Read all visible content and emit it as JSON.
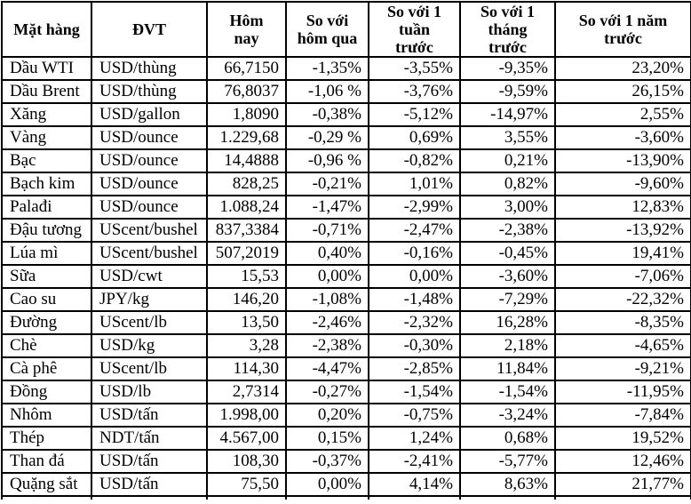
{
  "table": {
    "columns": [
      {
        "key": "name",
        "label": "Mặt hàng"
      },
      {
        "key": "unit",
        "label": "ĐVT"
      },
      {
        "key": "today",
        "label": "Hôm\nnay"
      },
      {
        "key": "vs_yesterday",
        "label": "So với\nhôm qua"
      },
      {
        "key": "vs_week",
        "label": "So với 1\ntuần\ntrước"
      },
      {
        "key": "vs_month",
        "label": "So với 1\ntháng\ntrước"
      },
      {
        "key": "vs_year",
        "label": "So với 1 năm\ntrước"
      }
    ],
    "rows": [
      {
        "name": "Dầu WTI",
        "unit": "USD/thùng",
        "today": "66,7150",
        "vs_yesterday": "-1,35%",
        "vs_week": "-3,55%",
        "vs_month": "-9,35%",
        "vs_year": "23,20%"
      },
      {
        "name": "Dầu Brent",
        "unit": "USD/thùng",
        "today": "76,8037",
        "vs_yesterday": "-1,06 %",
        "vs_week": "-3,76%",
        "vs_month": "-9,59%",
        "vs_year": "26,15%"
      },
      {
        "name": "Xăng",
        "unit": "USD/gallon",
        "today": "1,8090",
        "vs_yesterday": "-0,38%",
        "vs_week": "-5,12%",
        "vs_month": "-14,97%",
        "vs_year": "2,55%"
      },
      {
        "name": "Vàng",
        "unit": "USD/ounce",
        "today": "1.229,68",
        "vs_yesterday": "-0,29 %",
        "vs_week": "0,69%",
        "vs_month": "3,55%",
        "vs_year": "-3,60%"
      },
      {
        "name": "Bạc",
        "unit": "USD/ounce",
        "today": "14,4888",
        "vs_yesterday": "-0,96 %",
        "vs_week": "-0,82%",
        "vs_month": "0,21%",
        "vs_year": "-13,90%"
      },
      {
        "name": "Bạch kim",
        "unit": "USD/ounce",
        "today": "828,25",
        "vs_yesterday": "-0,21%",
        "vs_week": "1,01%",
        "vs_month": "0,82%",
        "vs_year": "-9,60%"
      },
      {
        "name": "Palađi",
        "unit": "USD/ounce",
        "today": "1.088,24",
        "vs_yesterday": "-1,47%",
        "vs_week": "-2,99%",
        "vs_month": "3,00%",
        "vs_year": "12,83%"
      },
      {
        "name": "Đậu tương",
        "unit": "UScent/bushel",
        "today": "837,3384",
        "vs_yesterday": "-0,71%",
        "vs_week": "-2,47%",
        "vs_month": "-2,38%",
        "vs_year": "-13,92%"
      },
      {
        "name": "Lúa mì",
        "unit": "UScent/bushel",
        "today": "507,2019",
        "vs_yesterday": "0,40%",
        "vs_week": "-0,16%",
        "vs_month": "-0,45%",
        "vs_year": "19,41%"
      },
      {
        "name": "Sữa",
        "unit": "USD/cwt",
        "today": "15,53",
        "vs_yesterday": "0,00%",
        "vs_week": "0,00%",
        "vs_month": "-3,60%",
        "vs_year": "-7,06%"
      },
      {
        "name": "Cao su",
        "unit": "JPY/kg",
        "today": "146,20",
        "vs_yesterday": "-1,08%",
        "vs_week": "-1,48%",
        "vs_month": "-7,29%",
        "vs_year": "-22,32%"
      },
      {
        "name": "Đường",
        "unit": "UScent/lb",
        "today": "13,50",
        "vs_yesterday": "-2,46%",
        "vs_week": "-2,32%",
        "vs_month": "16,28%",
        "vs_year": "-8,35%"
      },
      {
        "name": "Chè",
        "unit": "USD/kg",
        "today": "3,28",
        "vs_yesterday": "-2,38%",
        "vs_week": "-0,30%",
        "vs_month": "2,18%",
        "vs_year": "-4,65%"
      },
      {
        "name": "Cà phê",
        "unit": "UScent/lb",
        "today": "114,30",
        "vs_yesterday": "-4,47%",
        "vs_week": "-2,85%",
        "vs_month": "11,84%",
        "vs_year": "-9,21%"
      },
      {
        "name": "Đồng",
        "unit": "USD/lb",
        "today": "2,7314",
        "vs_yesterday": "-0,27%",
        "vs_week": "-1,54%",
        "vs_month": "-1,54%",
        "vs_year": "-11,95%"
      },
      {
        "name": "Nhôm",
        "unit": "USD/tấn",
        "today": "1.998,00",
        "vs_yesterday": "0,20%",
        "vs_week": "-0,75%",
        "vs_month": "-3,24%",
        "vs_year": "-7,84%"
      },
      {
        "name": "Thép",
        "unit": "NDT/tấn",
        "today": "4.567,00",
        "vs_yesterday": "0,15%",
        "vs_week": "1,24%",
        "vs_month": "0,68%",
        "vs_year": "19,52%"
      },
      {
        "name": "Than đá",
        "unit": "USD/tấn",
        "today": "108,30",
        "vs_yesterday": "-0,37%",
        "vs_week": "-2,41%",
        "vs_month": "-5,77%",
        "vs_year": "12,46%"
      },
      {
        "name": "Quặng sắt",
        "unit": "USD/tấn",
        "today": "75,50",
        "vs_yesterday": "0,00%",
        "vs_week": "4,14%",
        "vs_month": "8,63%",
        "vs_year": "21,77%"
      }
    ]
  }
}
